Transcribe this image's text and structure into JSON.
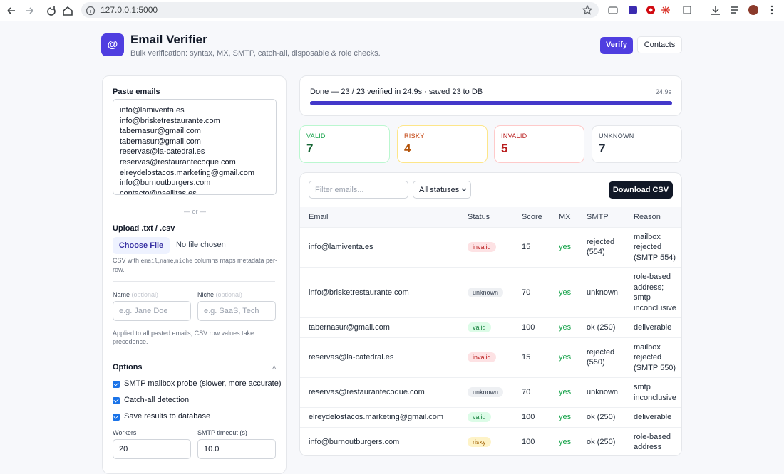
{
  "browser": {
    "url": "127.0.0.1:5000"
  },
  "header": {
    "logo": "@",
    "title": "Email Verifier",
    "subtitle": "Bulk verification: syntax, MX, SMTP, catch-all, disposable & role checks.",
    "buttons": [
      "Verify",
      "Contacts"
    ]
  },
  "input_panel": {
    "paste_label": "Paste emails",
    "emails": [
      "info@lamiventa.es",
      "info@brisketrestaurante.com",
      "tabernasur@gmail.com",
      "tabernasur@gmail.com",
      "reservas@la-catedral.es",
      "reservas@restaurantecoque.com",
      "elreydelostacos.marketing@gmail.com",
      "info@burnoutburgers.com",
      "contacto@paellitas.es"
    ],
    "separator": "— or —",
    "upload_label": "Upload .txt / .csv",
    "choose_file": "Choose File",
    "file_status": "No file chosen",
    "upload_hint": [
      "CSV with ",
      "email",
      ",",
      "name",
      ",",
      "niche",
      " columns maps metadata per-row."
    ],
    "name": {
      "label": "Name",
      "optional": "(optional)",
      "placeholder": "e.g. Jane Doe"
    },
    "niche": {
      "label": "Niche",
      "optional": "(optional)",
      "placeholder": "e.g. SaaS, Tech"
    },
    "meta_note": "Applied to all pasted emails; CSV row values take precedence.",
    "options": {
      "title": "Options",
      "toggle": "˄",
      "checkboxes": [
        {
          "label": "SMTP mailbox probe (slower, more accurate)",
          "checked": true
        },
        {
          "label": "Catch-all detection",
          "checked": true
        },
        {
          "label": "Save results to database",
          "checked": true
        }
      ]
    },
    "workers": {
      "label": "Workers",
      "value": "20"
    },
    "smtp_timeout": {
      "label": "SMTP timeout (s)",
      "value": "10.0"
    }
  },
  "progress": {
    "text": "Done — 23 / 23 verified in 24.9s · saved 23 to DB",
    "elapsed": "24.9s"
  },
  "stats": [
    {
      "label": "VALID",
      "count": 7
    },
    {
      "label": "RISKY",
      "count": 4
    },
    {
      "label": "INVALID",
      "count": 5
    },
    {
      "label": "UNKNOWN",
      "count": 7
    }
  ],
  "results": {
    "filter_placeholder": "Filter emails...",
    "status_filter": "All statuses",
    "download": "Download CSV",
    "columns": [
      "Email",
      "Status",
      "Score",
      "MX",
      "SMTP",
      "Reason"
    ],
    "rows": [
      [
        "info@lamiventa.es",
        "invalid",
        15,
        "yes",
        "rejected (554)",
        "mailbox rejected (SMTP 554)"
      ],
      [
        "info@brisketrestaurante.com",
        "unknown",
        70,
        "yes",
        "unknown",
        "role-based address; smtp inconclusive"
      ],
      [
        "tabernasur@gmail.com",
        "valid",
        100,
        "yes",
        "ok (250)",
        "deliverable"
      ],
      [
        "reservas@la-catedral.es",
        "invalid",
        15,
        "yes",
        "rejected (550)",
        "mailbox rejected (SMTP 550)"
      ],
      [
        "reservas@restaurantecoque.com",
        "unknown",
        70,
        "yes",
        "unknown",
        "smtp inconclusive"
      ],
      [
        "elreydelostacos.marketing@gmail.com",
        "valid",
        100,
        "yes",
        "ok (250)",
        "deliverable"
      ],
      [
        "info@burnoutburgers.com",
        "risky",
        100,
        "yes",
        "ok (250)",
        "role-based address"
      ]
    ]
  }
}
